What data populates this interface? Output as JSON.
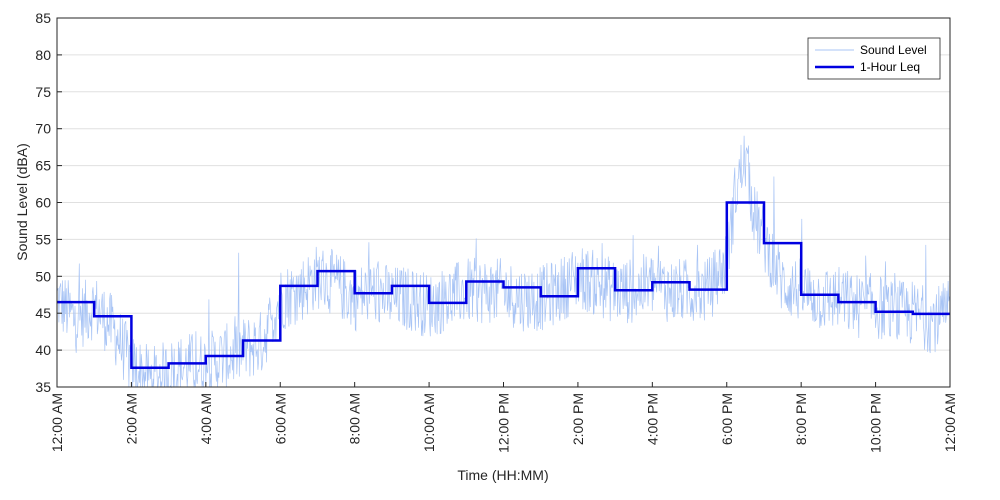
{
  "chart_data": {
    "type": "line",
    "title": "",
    "xlabel": "Time (HH:MM)",
    "ylabel": "Sound Level (dBA)",
    "ylim": [
      35,
      85
    ],
    "xlim_hours": [
      0,
      24
    ],
    "y_ticks": [
      35,
      40,
      45,
      50,
      55,
      60,
      65,
      70,
      75,
      80,
      85
    ],
    "x_ticks": [
      {
        "hour": 0,
        "label": "12:00 AM"
      },
      {
        "hour": 2,
        "label": "2:00 AM"
      },
      {
        "hour": 4,
        "label": "4:00 AM"
      },
      {
        "hour": 6,
        "label": "6:00 AM"
      },
      {
        "hour": 8,
        "label": "8:00 AM"
      },
      {
        "hour": 10,
        "label": "10:00 AM"
      },
      {
        "hour": 12,
        "label": "12:00 PM"
      },
      {
        "hour": 14,
        "label": "2:00 PM"
      },
      {
        "hour": 16,
        "label": "4:00 PM"
      },
      {
        "hour": 18,
        "label": "6:00 PM"
      },
      {
        "hour": 20,
        "label": "8:00 PM"
      },
      {
        "hour": 22,
        "label": "10:00 PM"
      },
      {
        "hour": 24,
        "label": "12:00 AM"
      }
    ],
    "grid": "horizontal",
    "legend_position": "top-right",
    "series": [
      {
        "name": "Sound Level",
        "color": "#a8c4f5",
        "style": "thin",
        "hours": [
          0,
          0.5,
          1,
          1.5,
          2,
          2.5,
          3,
          3.5,
          4,
          4.5,
          5,
          5.5,
          6,
          6.5,
          7,
          7.5,
          8,
          8.5,
          9,
          9.5,
          10,
          10.5,
          11,
          11.5,
          12,
          12.5,
          13,
          13.5,
          14,
          14.5,
          15,
          15.5,
          16,
          16.5,
          17,
          17.5,
          18,
          18.25,
          18.5,
          18.75,
          19,
          19.25,
          19.5,
          20,
          20.5,
          21,
          21.5,
          22,
          22.5,
          23,
          23.5,
          24
        ],
        "values": [
          47,
          44,
          46,
          43,
          38,
          36,
          37,
          38,
          38,
          39,
          40,
          41,
          47,
          48,
          50,
          49,
          47,
          48,
          47,
          47,
          46,
          47,
          48,
          48,
          48,
          47,
          47,
          48,
          50,
          49,
          48,
          48,
          49,
          48,
          48,
          48,
          52,
          62,
          66,
          58,
          55,
          52,
          49,
          48,
          47,
          47,
          46,
          46,
          45,
          45,
          44,
          45
        ]
      },
      {
        "name": "1-Hour Leq",
        "color": "#0000e0",
        "style": "step",
        "hour_start": 0,
        "values": [
          46.5,
          44.6,
          37.6,
          38.2,
          39.2,
          41.3,
          48.7,
          50.7,
          47.7,
          48.7,
          46.4,
          49.3,
          48.5,
          47.3,
          51.1,
          48.1,
          49.2,
          48.2,
          60.0,
          54.5,
          47.5,
          46.5,
          45.2,
          44.9
        ]
      }
    ]
  }
}
